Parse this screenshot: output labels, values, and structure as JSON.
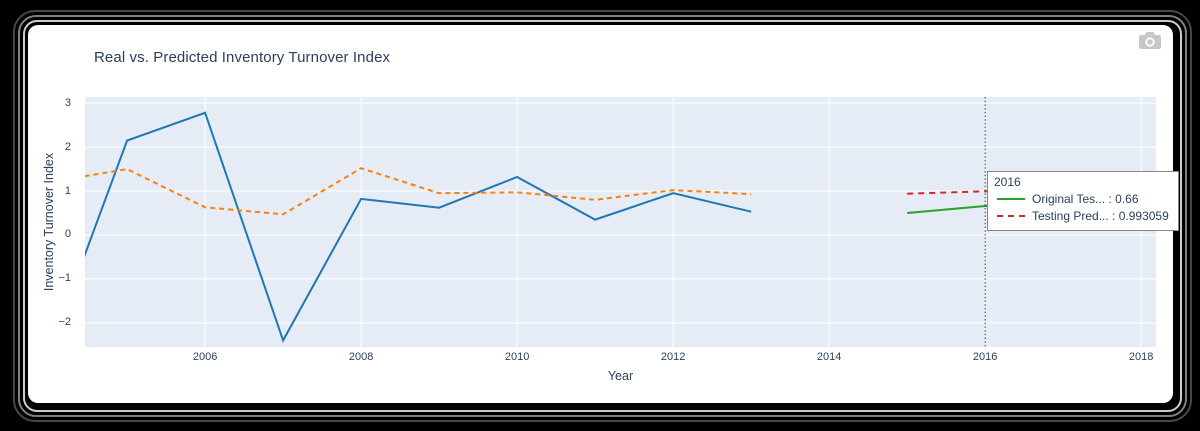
{
  "title": "Real vs. Predicted Inventory Turnover Index",
  "modebar": {
    "icon": "camera-icon"
  },
  "axes": {
    "x": {
      "label": "Year",
      "range": [
        2004.46,
        2018.19
      ],
      "ticks": [
        {
          "v": 2006,
          "label": "2006"
        },
        {
          "v": 2008,
          "label": "2008"
        },
        {
          "v": 2010,
          "label": "2010"
        },
        {
          "v": 2012,
          "label": "2012"
        },
        {
          "v": 2014,
          "label": "2014"
        },
        {
          "v": 2016,
          "label": "2016"
        },
        {
          "v": 2018,
          "label": "2018"
        }
      ]
    },
    "y": {
      "label": "Inventory Turnover Index",
      "range": [
        -2.55,
        3.14
      ],
      "ticks": [
        {
          "v": 3,
          "label": "3"
        },
        {
          "v": 2,
          "label": "2"
        },
        {
          "v": 1,
          "label": "1"
        },
        {
          "v": 0,
          "label": "0"
        },
        {
          "v": -1,
          "label": "−1"
        },
        {
          "v": -2,
          "label": "−2"
        }
      ]
    }
  },
  "chart_data": {
    "type": "line",
    "grid": true,
    "plot_bg": "#e5ecf6",
    "grid_color": "#ffffff",
    "series": [
      {
        "id": "real-training-line",
        "color": "#1f77b4",
        "dash": "solid",
        "x": [
          2004,
          2005,
          2006,
          2007,
          2008,
          2009,
          2010,
          2011,
          2012,
          2013
        ],
        "y": [
          -2.65,
          2.15,
          2.78,
          -2.4,
          0.82,
          0.62,
          1.32,
          0.35,
          0.95,
          0.53
        ]
      },
      {
        "id": "predicted-training-line",
        "color": "#ff7f0e",
        "dash": "5,4",
        "x": [
          2004,
          2005,
          2006,
          2007,
          2008,
          2009,
          2010,
          2011,
          2012,
          2013
        ],
        "y": [
          1.2,
          1.5,
          0.63,
          0.47,
          1.52,
          0.95,
          0.97,
          0.8,
          1.02,
          0.93
        ]
      },
      {
        "id": "original-test-line",
        "color": "#2ca02c",
        "dash": "solid",
        "x": [
          2015,
          2016,
          2017,
          2018,
          2019
        ],
        "y": [
          0.5,
          0.66,
          0.85,
          1.07,
          1.6
        ]
      },
      {
        "id": "testing-prediction-line",
        "color": "#d62728",
        "dash": "6,5",
        "x": [
          2015,
          2016,
          2017,
          2018,
          2019
        ],
        "y": [
          0.94,
          0.993059,
          0.96,
          0.93,
          0.9
        ]
      }
    ],
    "vline": {
      "x": 2016,
      "color": "#333333",
      "dash": "1.5,2.2"
    }
  },
  "tooltip": {
    "year": "2016",
    "rows": [
      {
        "swatch": "solid",
        "color": "#2ca02c",
        "text": "Original Tes... : 0.66"
      },
      {
        "swatch": "dash",
        "color": "#d62728",
        "text": "Testing Pred... : 0.993059"
      }
    ]
  }
}
